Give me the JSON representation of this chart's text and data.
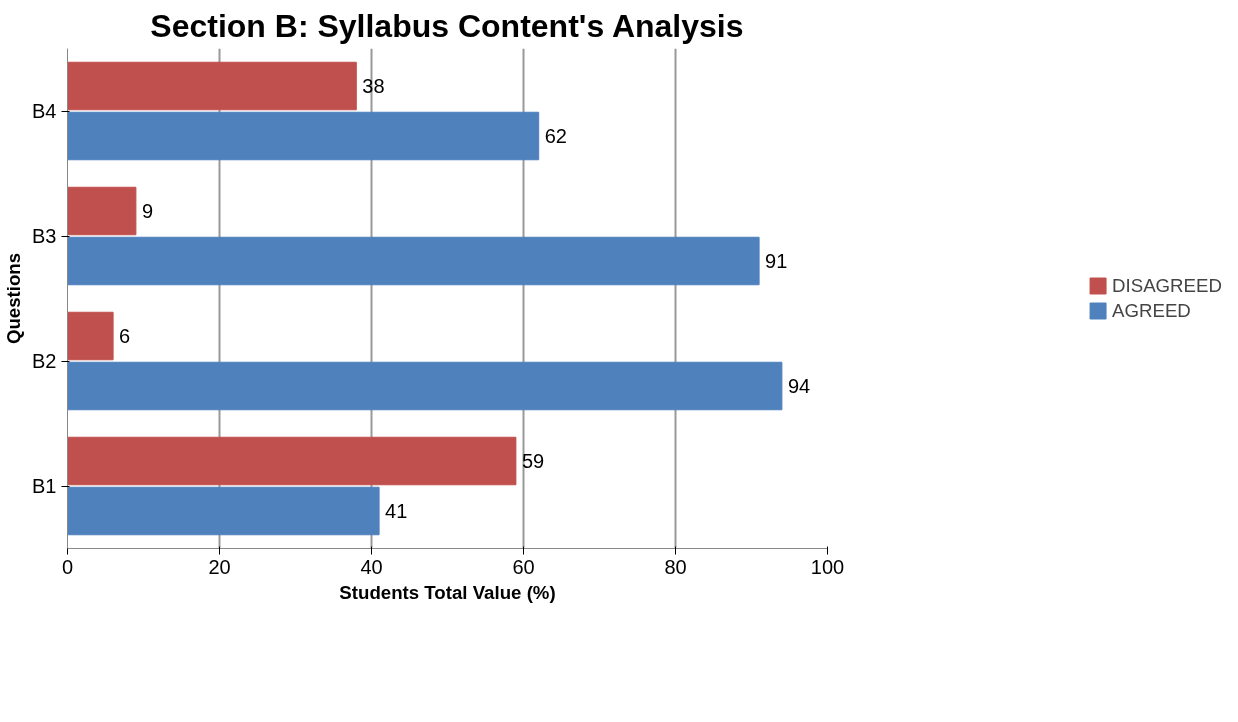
{
  "chart_data": {
    "type": "bar",
    "orientation": "horizontal",
    "title": "Section B: Syllabus Content's Analysis",
    "xlabel": "Students Total Value (%)",
    "ylabel": "Questions",
    "categories": [
      "B4",
      "B3",
      "B2",
      "B1"
    ],
    "series": [
      {
        "name": "DISAGREED",
        "color": "#c0504d",
        "values": [
          38,
          9,
          6,
          59
        ]
      },
      {
        "name": "AGREED",
        "color": "#4f81bd",
        "values": [
          62,
          91,
          94,
          41
        ]
      }
    ],
    "xlim": [
      0,
      100
    ],
    "xticks": [
      0,
      20,
      40,
      60,
      80,
      100
    ],
    "grid": "x",
    "legend": "right",
    "data_labels": true
  }
}
